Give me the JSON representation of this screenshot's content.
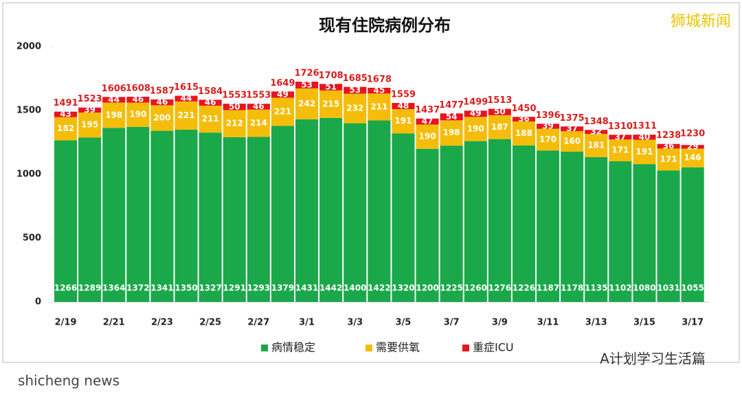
{
  "chart_data": {
    "type": "stacked-bar",
    "title": "现有住院病例分布",
    "categories": [
      "2/19",
      null,
      "2/21",
      null,
      "2/23",
      null,
      "2/25",
      null,
      "2/27",
      null,
      "3/1",
      null,
      "3/3",
      null,
      "3/5",
      null,
      "3/7",
      null,
      "3/9",
      null,
      "3/11",
      null,
      "3/13",
      null,
      "3/15",
      null,
      "3/17"
    ],
    "series": [
      {
        "name": "病情稳定",
        "color": "#1aa84a",
        "values": [
          1266,
          1289,
          1364,
          1372,
          1341,
          1350,
          1327,
          1291,
          1293,
          1379,
          1431,
          1442,
          1400,
          1422,
          1320,
          1200,
          1225,
          1260,
          1276,
          1226,
          1187,
          1178,
          1135,
          1102,
          1080,
          1031,
          1055
        ]
      },
      {
        "name": "需要供氧",
        "color": "#f5bd0a",
        "values": [
          182,
          195,
          198,
          190,
          200,
          221,
          211,
          212,
          214,
          221,
          242,
          215,
          232,
          211,
          191,
          190,
          198,
          190,
          187,
          188,
          170,
          160,
          181,
          171,
          191,
          171,
          146
        ]
      },
      {
        "name": "重症ICU",
        "color": "#e8141e",
        "values": [
          43,
          39,
          44,
          46,
          46,
          44,
          46,
          50,
          46,
          49,
          53,
          51,
          53,
          45,
          48,
          47,
          54,
          49,
          50,
          36,
          39,
          37,
          32,
          37,
          40,
          36,
          29
        ]
      }
    ],
    "totals": [
      1491,
      1523,
      1606,
      1608,
      1587,
      1615,
      1584,
      1553,
      1553,
      1649,
      1726,
      1708,
      1685,
      1678,
      1559,
      1437,
      1477,
      1499,
      1513,
      1450,
      1396,
      1375,
      1348,
      1310,
      1311,
      1238,
      1230
    ],
    "ylim": [
      0,
      2000
    ],
    "yticks": [
      0,
      500,
      1000,
      1500,
      2000
    ],
    "grid": false
  },
  "watermarks": [
    "狮城新闻",
    "A计划学习生活篇",
    "shicheng news"
  ]
}
